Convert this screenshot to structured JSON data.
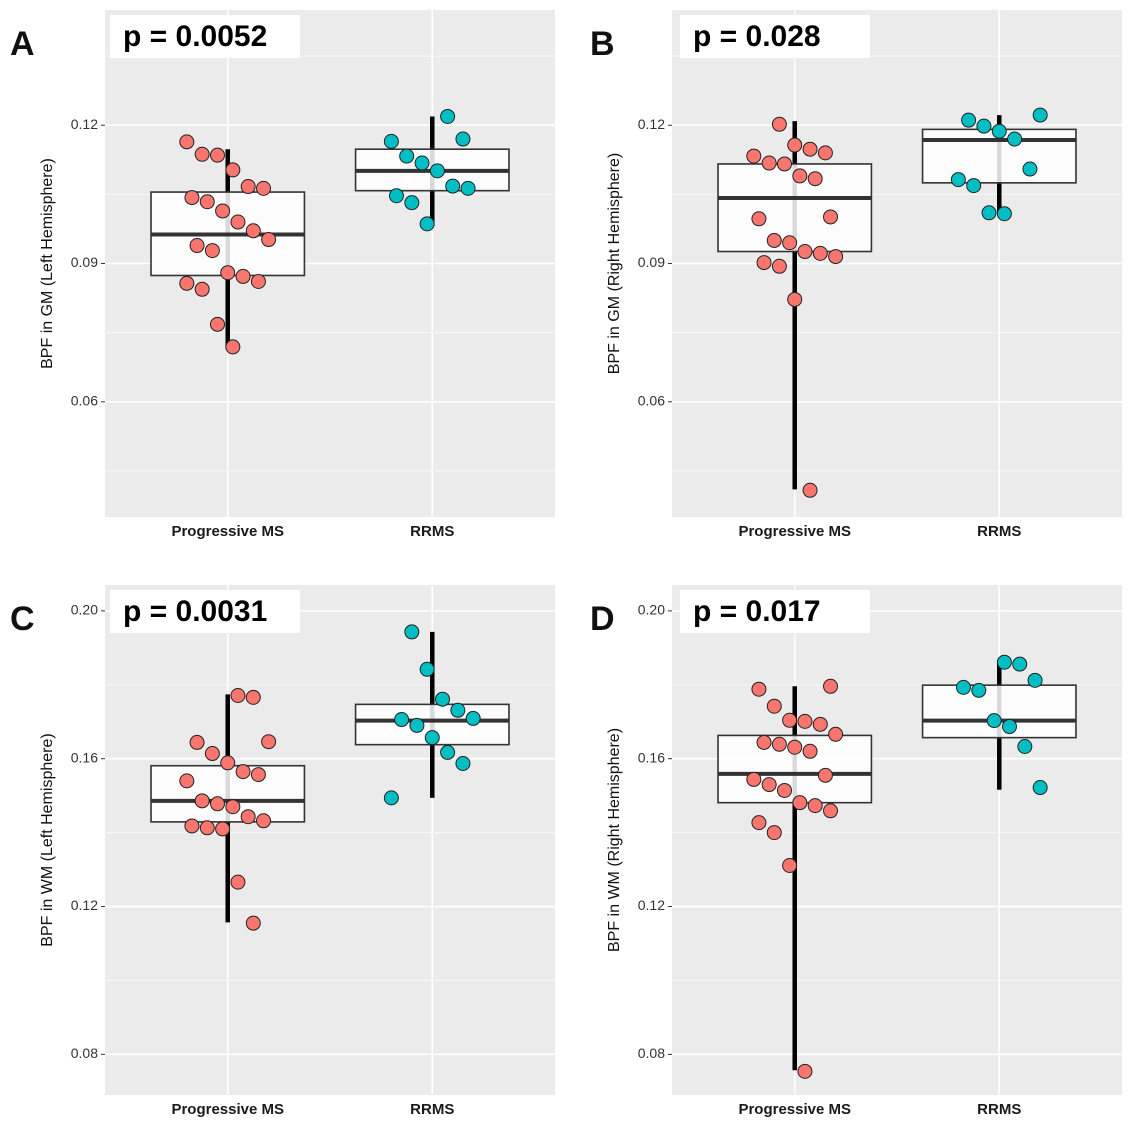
{
  "chart_data": [
    {
      "type": "box",
      "panel": "A",
      "annotation": "p = 0.0052",
      "y_label": "BPF in GM (Left Hemisphere)",
      "categories": [
        "Progressive MS",
        "RRMS"
      ],
      "ylim": [
        0.035,
        0.145
      ],
      "yticks": [
        0.06,
        0.09,
        0.12
      ],
      "minor_yticks": [
        0.045,
        0.075,
        0.105,
        0.135
      ],
      "grid": true,
      "series": [
        {
          "color": "#f8766d",
          "whisker_low": 0.0714,
          "q1": 0.0874,
          "median": 0.0963,
          "q3": 0.1055,
          "whisker_high": 0.1148,
          "points": [
            0.1164,
            0.1137,
            0.1135,
            0.1103,
            0.1067,
            0.1063,
            0.1043,
            0.1034,
            0.1014,
            0.099,
            0.0971,
            0.0952,
            0.0939,
            0.0928,
            0.088,
            0.0872,
            0.0861,
            0.0857,
            0.0844,
            0.0768,
            0.0719
          ]
        },
        {
          "color": "#00bfc4",
          "whisker_low": 0.0982,
          "q1": 0.1058,
          "median": 0.1101,
          "q3": 0.1148,
          "whisker_high": 0.1219,
          "points": [
            0.1219,
            0.117,
            0.1165,
            0.1133,
            0.1118,
            0.1101,
            0.1068,
            0.1063,
            0.1047,
            0.1032,
            0.0986
          ]
        }
      ]
    },
    {
      "type": "box",
      "panel": "B",
      "annotation": "p = 0.028",
      "y_label": "BPF in GM (Right Hemisphere)",
      "categories": [
        "Progressive MS",
        "RRMS"
      ],
      "ylim": [
        0.035,
        0.145
      ],
      "yticks": [
        0.06,
        0.09,
        0.12
      ],
      "minor_yticks": [
        0.045,
        0.075,
        0.105,
        0.135
      ],
      "grid": true,
      "series": [
        {
          "color": "#f8766d",
          "whisker_low": 0.041,
          "q1": 0.0926,
          "median": 0.1042,
          "q3": 0.1116,
          "whisker_high": 0.1209,
          "points": [
            0.1202,
            0.1157,
            0.1148,
            0.114,
            0.1133,
            0.1118,
            0.1116,
            0.109,
            0.1084,
            0.1001,
            0.0997,
            0.095,
            0.0945,
            0.0926,
            0.0922,
            0.0915,
            0.0902,
            0.0894,
            0.0822,
            0.0408
          ]
        },
        {
          "color": "#00bfc4",
          "whisker_low": 0.101,
          "q1": 0.1075,
          "median": 0.1168,
          "q3": 0.1191,
          "whisker_high": 0.1222,
          "points": [
            0.1222,
            0.1211,
            0.1198,
            0.1187,
            0.117,
            0.1105,
            0.1082,
            0.1069,
            0.101,
            0.1008
          ]
        }
      ]
    },
    {
      "type": "box",
      "panel": "C",
      "annotation": "p = 0.0031",
      "y_label": "BPF in WM (Left Hemisphere)",
      "categories": [
        "Progressive MS",
        "RRMS"
      ],
      "ylim": [
        0.069,
        0.207
      ],
      "yticks": [
        0.08,
        0.12,
        0.16,
        {
          "value": 0.2,
          "label": "0.20"
        }
      ],
      "minor_yticks": [
        0.1,
        0.14,
        0.18
      ],
      "grid": true,
      "series": [
        {
          "color": "#f8766d",
          "whisker_low": 0.1157,
          "q1": 0.1429,
          "median": 0.1486,
          "q3": 0.1581,
          "whisker_high": 0.1774,
          "points": [
            0.1771,
            0.1766,
            0.1646,
            0.1644,
            0.1614,
            0.1589,
            0.1565,
            0.1557,
            0.154,
            0.1486,
            0.1478,
            0.147,
            0.1443,
            0.1432,
            0.1418,
            0.1413,
            0.141,
            0.1266,
            0.1155
          ]
        },
        {
          "color": "#00bfc4",
          "whisker_low": 0.1494,
          "q1": 0.1638,
          "median": 0.1703,
          "q3": 0.1747,
          "whisker_high": 0.1943,
          "points": [
            0.1943,
            0.1842,
            0.1761,
            0.1731,
            0.1709,
            0.1706,
            0.169,
            0.1657,
            0.1617,
            0.1587,
            0.1494
          ]
        }
      ]
    },
    {
      "type": "box",
      "panel": "D",
      "annotation": "p = 0.017",
      "y_label": "BPF in WM (Right Hemisphere)",
      "categories": [
        "Progressive MS",
        "RRMS"
      ],
      "ylim": [
        0.069,
        0.207
      ],
      "yticks": [
        0.08,
        0.12,
        0.16,
        {
          "value": 0.2,
          "label": "0.20"
        }
      ],
      "minor_yticks": [
        0.1,
        0.14,
        0.18
      ],
      "grid": true,
      "series": [
        {
          "color": "#f8766d",
          "whisker_low": 0.0757,
          "q1": 0.1481,
          "median": 0.1559,
          "q3": 0.1663,
          "whisker_high": 0.1796,
          "points": [
            0.1796,
            0.1788,
            0.1742,
            0.1704,
            0.1701,
            0.1693,
            0.1666,
            0.1644,
            0.1639,
            0.1631,
            0.162,
            0.1555,
            0.1544,
            0.153,
            0.1514,
            0.1481,
            0.1473,
            0.1459,
            0.1427,
            0.14,
            0.1311,
            0.0754
          ]
        },
        {
          "color": "#00bfc4",
          "whisker_low": 0.1516,
          "q1": 0.1657,
          "median": 0.1703,
          "q3": 0.1799,
          "whisker_high": 0.1861,
          "points": [
            0.1861,
            0.1856,
            0.1812,
            0.1793,
            0.1785,
            0.1703,
            0.1687,
            0.1633,
            0.1522
          ]
        }
      ]
    }
  ]
}
